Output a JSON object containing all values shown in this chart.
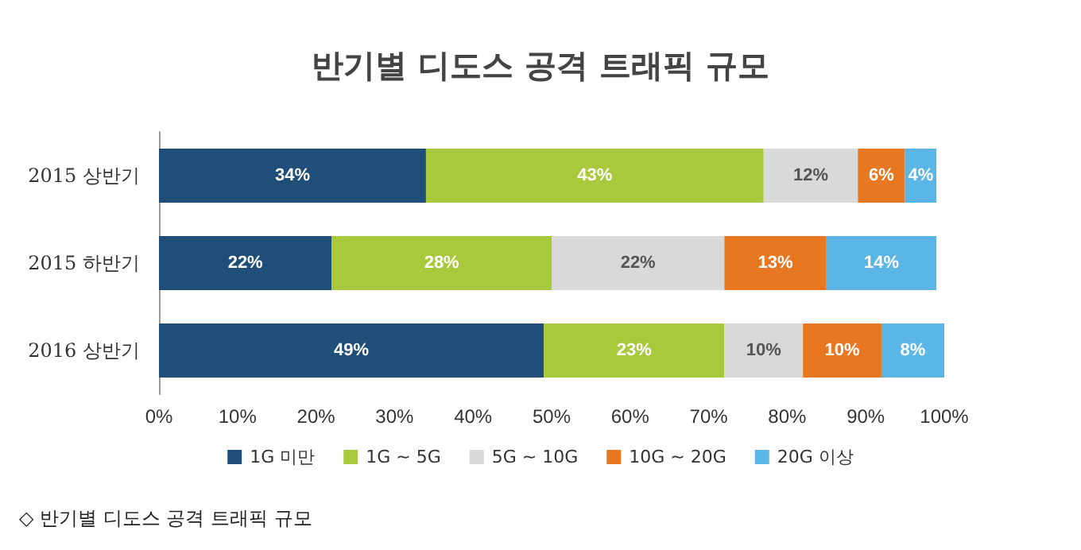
{
  "chart_data": {
    "type": "bar",
    "orientation": "horizontal",
    "stacked": true,
    "title": "반기별 디도스 공격 트래픽 규모",
    "categories": [
      "2015 상반기",
      "2015 하반기",
      "2016 상반기"
    ],
    "series": [
      {
        "name": "1G 미만",
        "color": "#1f4e79",
        "values": [
          34,
          22,
          49
        ],
        "value_labels": [
          "34%",
          "22%",
          "49%"
        ]
      },
      {
        "name": "1G ~ 5G",
        "color": "#a9c93c",
        "values": [
          43,
          28,
          23
        ],
        "value_labels": [
          "43%",
          "28%",
          "23%"
        ]
      },
      {
        "name": "5G ~ 10G",
        "color": "#d9d9d9",
        "values": [
          12,
          22,
          10
        ],
        "value_labels": [
          "12%",
          "22%",
          "10%"
        ]
      },
      {
        "name": "10G ~ 20G",
        "color": "#e87722",
        "values": [
          6,
          13,
          10
        ],
        "value_labels": [
          "6%",
          "13%",
          "10%"
        ]
      },
      {
        "name": "20G 이상",
        "color": "#5bb5e5",
        "values": [
          4,
          14,
          8
        ],
        "value_labels": [
          "4%",
          "14%",
          "8%"
        ]
      }
    ],
    "xlim": [
      0,
      100
    ],
    "xticks": [
      {
        "value": 0,
        "label": "0%"
      },
      {
        "value": 10,
        "label": "10%"
      },
      {
        "value": 20,
        "label": "20%"
      },
      {
        "value": 30,
        "label": "30%"
      },
      {
        "value": 40,
        "label": "40%"
      },
      {
        "value": 50,
        "label": "50%"
      },
      {
        "value": 60,
        "label": "60%"
      },
      {
        "value": 70,
        "label": "70%"
      },
      {
        "value": 80,
        "label": "80%"
      },
      {
        "value": 90,
        "label": "90%"
      },
      {
        "value": 100,
        "label": "100%"
      }
    ],
    "grid": false,
    "legend": "bottom",
    "annotations": [
      "◇ 반기별 디도스 공격 트래픽 규모"
    ]
  }
}
